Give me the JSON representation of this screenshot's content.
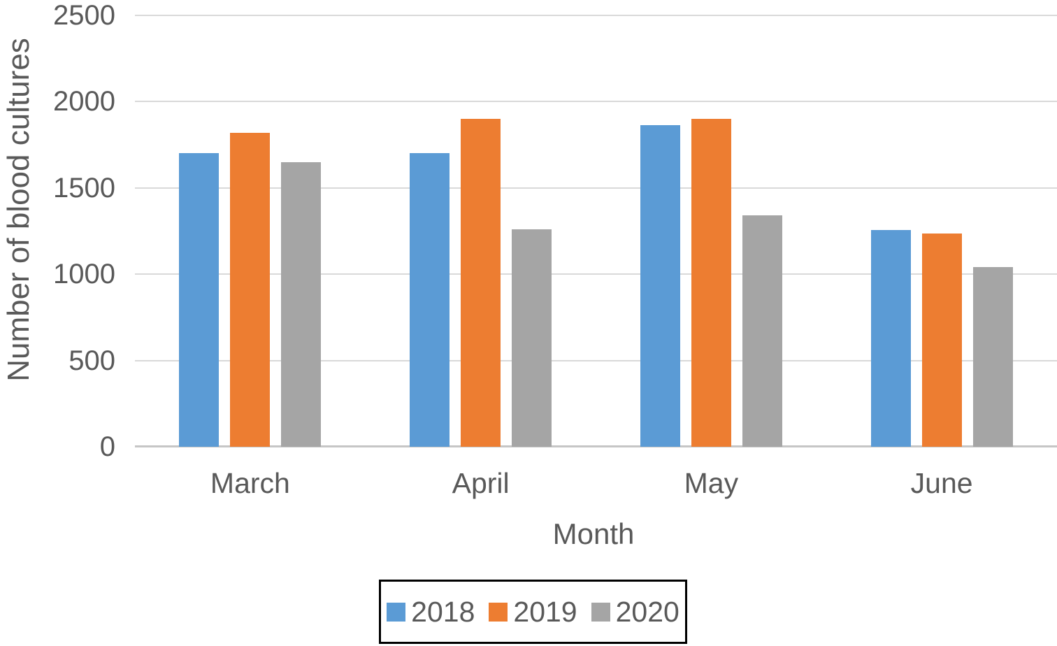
{
  "chart_data": {
    "type": "bar",
    "title": "",
    "xlabel": "Month",
    "ylabel": "Number of blood cultures",
    "categories": [
      "March",
      "April",
      "May",
      "June"
    ],
    "series": [
      {
        "name": "2018",
        "color": "#5B9BD5",
        "values": [
          1700,
          1700,
          1865,
          1255
        ]
      },
      {
        "name": "2019",
        "color": "#ED7D31",
        "values": [
          1820,
          1900,
          1900,
          1235
        ]
      },
      {
        "name": "2020",
        "color": "#A5A5A5",
        "values": [
          1650,
          1260,
          1340,
          1040
        ]
      }
    ],
    "ylim": [
      0,
      2500
    ],
    "yticks": [
      0,
      500,
      1000,
      1500,
      2000,
      2500
    ],
    "grid": "horizontal",
    "legend_position": "bottom",
    "colors": {
      "text": "#595959",
      "gridline": "#D9D9D9",
      "axis_line": "#C6C6C6",
      "legend_border": "#000000",
      "background": "#FFFFFF"
    }
  }
}
